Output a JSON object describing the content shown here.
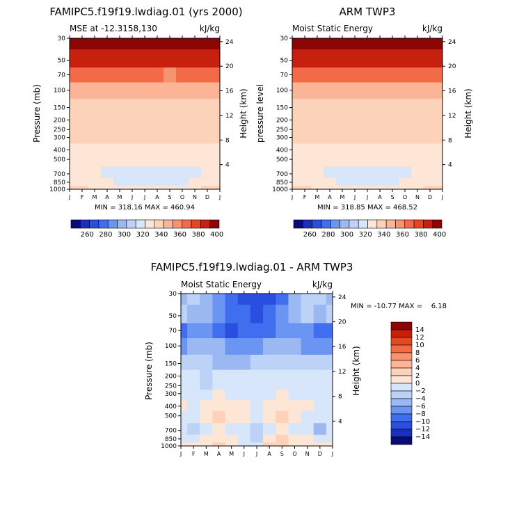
{
  "chart_data": [
    {
      "type": "heatmap",
      "title": "FAMIPC5.f19f19.lwdiag.01 (yrs 2000)",
      "subtitle_left": "MSE at -12.3158,130",
      "subtitle_right": "kJ/kg",
      "ylabel": "Pressure (mb)",
      "ylabel_right": "Height (km)",
      "stats": "MIN = 318.16 MAX = 460.94",
      "x_ticks": [
        "J",
        "F",
        "M",
        "A",
        "M",
        "J",
        "J",
        "A",
        "S",
        "O",
        "N",
        "D",
        "J"
      ],
      "y_ticks": [
        30,
        50,
        70,
        100,
        150,
        200,
        250,
        300,
        400,
        500,
        700,
        850,
        1000
      ],
      "y_ticks_right": [
        24,
        20,
        16,
        12,
        8,
        4
      ],
      "x": [
        0,
        1,
        2,
        3,
        4,
        5,
        6,
        7,
        8,
        9,
        10,
        11,
        12
      ],
      "y": [
        30,
        50,
        70,
        100,
        150,
        200,
        250,
        300,
        400,
        500,
        700,
        850,
        1000
      ],
      "values": [
        [
          460,
          460,
          460,
          460,
          460,
          460,
          460,
          460,
          460,
          460,
          460,
          460,
          460
        ],
        [
          395,
          395,
          394,
          393,
          395,
          396,
          396,
          396,
          396,
          395,
          394,
          395,
          395
        ],
        [
          372,
          370,
          371,
          371,
          370,
          370,
          371,
          370,
          369,
          370,
          371,
          372,
          372
        ],
        [
          352,
          352,
          352,
          352,
          352,
          352,
          352,
          352,
          352,
          352,
          352,
          352,
          352
        ],
        [
          345,
          345,
          345,
          345,
          345,
          345,
          345,
          345,
          345,
          345,
          345,
          345,
          345
        ],
        [
          345,
          345,
          345,
          345,
          345,
          345,
          345,
          345,
          345,
          345,
          345,
          345,
          345
        ],
        [
          345,
          345,
          345,
          345,
          345,
          345,
          345,
          345,
          345,
          345,
          345,
          345,
          345
        ],
        [
          343,
          342,
          342,
          341,
          341,
          342,
          342,
          342,
          342,
          342,
          342,
          342,
          343
        ],
        [
          338,
          336,
          336,
          336,
          336,
          336,
          336,
          336,
          336,
          336,
          336,
          336,
          338
        ],
        [
          335,
          333,
          333,
          333,
          331,
          331,
          331,
          331,
          331,
          331,
          333,
          333,
          335
        ],
        [
          335,
          333,
          333,
          328,
          326,
          325,
          322,
          325,
          326,
          326,
          328,
          333,
          335
        ],
        [
          338,
          336,
          333,
          330,
          328,
          328,
          328,
          328,
          328,
          328,
          330,
          336,
          338
        ],
        [
          345,
          342,
          338,
          336,
          336,
          336,
          336,
          336,
          336,
          336,
          338,
          342,
          345
        ]
      ],
      "colorbar": {
        "labels": [
          "260",
          "280",
          "300",
          "320",
          "340",
          "360",
          "380",
          "400"
        ],
        "colors": [
          "#0a0a78",
          "#1a2fbf",
          "#2a4fe0",
          "#3f6eef",
          "#6b95f2",
          "#9bb8f3",
          "#bcd2f7",
          "#d7e6fb",
          "#fde6d6",
          "#fcd2b9",
          "#fbb596",
          "#f89370",
          "#f26b46",
          "#e8461f",
          "#c8200e",
          "#8b0505"
        ],
        "min": 250,
        "max": 410
      }
    },
    {
      "type": "heatmap",
      "title": "ARM TWP3",
      "subtitle_left": "Moist Static Energy",
      "subtitle_right": "kJ/kg",
      "ylabel": "pressure level",
      "ylabel_right": "Height (km)",
      "stats": "MIN = 318.85 MAX = 468.52",
      "x_ticks": [
        "J",
        "F",
        "M",
        "A",
        "M",
        "J",
        "J",
        "A",
        "S",
        "O",
        "N",
        "D",
        "J"
      ],
      "y_ticks": [
        30,
        50,
        70,
        100,
        150,
        200,
        250,
        300,
        400,
        500,
        700,
        850,
        1000
      ],
      "y_ticks_right": [
        24,
        20,
        16,
        12,
        8,
        4
      ],
      "x": [
        0,
        1,
        2,
        3,
        4,
        5,
        6,
        7,
        8,
        9,
        10,
        11,
        12
      ],
      "y": [
        30,
        50,
        70,
        100,
        150,
        200,
        250,
        300,
        400,
        500,
        700,
        850,
        1000
      ],
      "values": [
        [
          465,
          465,
          465,
          465,
          465,
          465,
          465,
          465,
          465,
          465,
          465,
          465,
          465
        ],
        [
          398,
          398,
          398,
          398,
          398,
          398,
          398,
          398,
          398,
          398,
          398,
          398,
          398
        ],
        [
          373,
          372,
          372,
          372,
          372,
          372,
          372,
          372,
          372,
          372,
          372,
          373,
          373
        ],
        [
          355,
          354,
          354,
          354,
          354,
          354,
          354,
          354,
          354,
          354,
          354,
          354,
          355
        ],
        [
          347,
          347,
          347,
          347,
          347,
          347,
          347,
          347,
          347,
          347,
          347,
          347,
          347
        ],
        [
          345,
          345,
          345,
          345,
          345,
          345,
          345,
          345,
          345,
          345,
          345,
          345,
          345
        ],
        [
          345,
          345,
          345,
          345,
          345,
          345,
          345,
          345,
          345,
          345,
          345,
          345,
          345
        ],
        [
          342,
          342,
          342,
          342,
          342,
          342,
          342,
          342,
          342,
          342,
          342,
          342,
          342
        ],
        [
          336,
          336,
          336,
          336,
          336,
          336,
          336,
          336,
          336,
          336,
          336,
          336,
          336
        ],
        [
          336,
          336,
          334,
          332,
          332,
          332,
          332,
          332,
          332,
          332,
          334,
          336,
          336
        ],
        [
          336,
          335,
          332,
          326,
          325,
          324,
          320,
          324,
          325,
          326,
          330,
          335,
          336
        ],
        [
          338,
          336,
          333,
          330,
          328,
          328,
          328,
          328,
          328,
          330,
          333,
          336,
          338
        ],
        [
          345,
          342,
          338,
          336,
          336,
          336,
          336,
          336,
          336,
          338,
          338,
          342,
          345
        ]
      ],
      "colorbar": {
        "labels": [
          "260",
          "280",
          "300",
          "320",
          "340",
          "360",
          "380",
          "400"
        ],
        "colors": [
          "#0a0a78",
          "#1a2fbf",
          "#2a4fe0",
          "#3f6eef",
          "#6b95f2",
          "#9bb8f3",
          "#bcd2f7",
          "#d7e6fb",
          "#fde6d6",
          "#fcd2b9",
          "#fbb596",
          "#f89370",
          "#f26b46",
          "#e8461f",
          "#c8200e",
          "#8b0505"
        ],
        "min": 250,
        "max": 410
      }
    },
    {
      "type": "heatmap",
      "title": "FAMIPC5.f19f19.lwdiag.01 - ARM TWP3",
      "subtitle_left": "Moist Static Energy",
      "subtitle_right": "kJ/kg",
      "ylabel": "Pressure (mb)",
      "ylabel_right": "Height (km)",
      "stats": "MIN = -10.77 MAX =    6.18",
      "x_ticks": [
        "J",
        "F",
        "M",
        "A",
        "M",
        "J",
        "J",
        "A",
        "S",
        "O",
        "N",
        "D",
        "J"
      ],
      "y_ticks": [
        30,
        50,
        70,
        100,
        150,
        200,
        250,
        300,
        400,
        500,
        700,
        850,
        1000
      ],
      "y_ticks_right": [
        24,
        20,
        16,
        12,
        8,
        4
      ],
      "x": [
        0,
        1,
        2,
        3,
        4,
        5,
        6,
        7,
        8,
        9,
        10,
        11,
        12
      ],
      "y": [
        30,
        50,
        70,
        100,
        150,
        200,
        250,
        300,
        400,
        500,
        700,
        850,
        1000
      ],
      "values": [
        [
          -5,
          -3,
          -5,
          -7,
          -9,
          -11,
          -11,
          -11,
          -9,
          -5,
          -3,
          -3,
          -5
        ],
        [
          -3,
          -5,
          -5,
          -7,
          -9,
          -9,
          -11,
          -9,
          -7,
          -5,
          -3,
          -5,
          -3
        ],
        [
          -9,
          -7,
          -7,
          -9,
          -11,
          -9,
          -9,
          -9,
          -7,
          -7,
          -7,
          -9,
          -9
        ],
        [
          -7,
          -5,
          -5,
          -5,
          -7,
          -7,
          -7,
          -5,
          -5,
          -5,
          -7,
          -7,
          -7
        ],
        [
          -3,
          -3,
          -3,
          -5,
          -5,
          -5,
          -3,
          -3,
          -3,
          -3,
          -3,
          -3,
          -3
        ],
        [
          -1,
          -1,
          -3,
          -1,
          -1,
          -1,
          -1,
          -1,
          -1,
          -1,
          -1,
          -1,
          -1
        ],
        [
          -1,
          -1,
          -3,
          -1,
          -1,
          -1,
          -1,
          -1,
          -1,
          -1,
          -1,
          -1,
          -1
        ],
        [
          -1,
          -1,
          -1,
          1,
          -1,
          -1,
          -1,
          -1,
          1,
          -1,
          -1,
          -1,
          -1
        ],
        [
          1,
          -1,
          1,
          1,
          1,
          1,
          -1,
          1,
          1,
          1,
          1,
          -1,
          -1
        ],
        [
          -1,
          -1,
          1,
          3,
          1,
          1,
          -1,
          1,
          3,
          1,
          -1,
          -1,
          -1
        ],
        [
          -1,
          -3,
          -1,
          1,
          -1,
          -1,
          -3,
          -1,
          1,
          -1,
          -1,
          -5,
          -1
        ],
        [
          -1,
          -1,
          1,
          1,
          1,
          -1,
          -3,
          1,
          3,
          1,
          1,
          -1,
          -1
        ],
        [
          1,
          1,
          1,
          3,
          1,
          -1,
          -1,
          3,
          3,
          1,
          1,
          1,
          1
        ]
      ],
      "colorbar": {
        "labels": [
          "14",
          "12",
          "10",
          "8",
          "6",
          "4",
          "2",
          "0",
          "-2",
          "-4",
          "-6",
          "-8",
          "-10",
          "-12",
          "-14"
        ],
        "colors": [
          "#8b0505",
          "#c8200e",
          "#e8461f",
          "#f26b46",
          "#f89370",
          "#fbb596",
          "#fcd2b9",
          "#fde6d6",
          "#d7e6fb",
          "#bcd2f7",
          "#9bb8f3",
          "#6b95f2",
          "#3f6eef",
          "#2a4fe0",
          "#1a2fbf",
          "#0a0a78"
        ],
        "min": -16,
        "max": 16
      }
    }
  ]
}
